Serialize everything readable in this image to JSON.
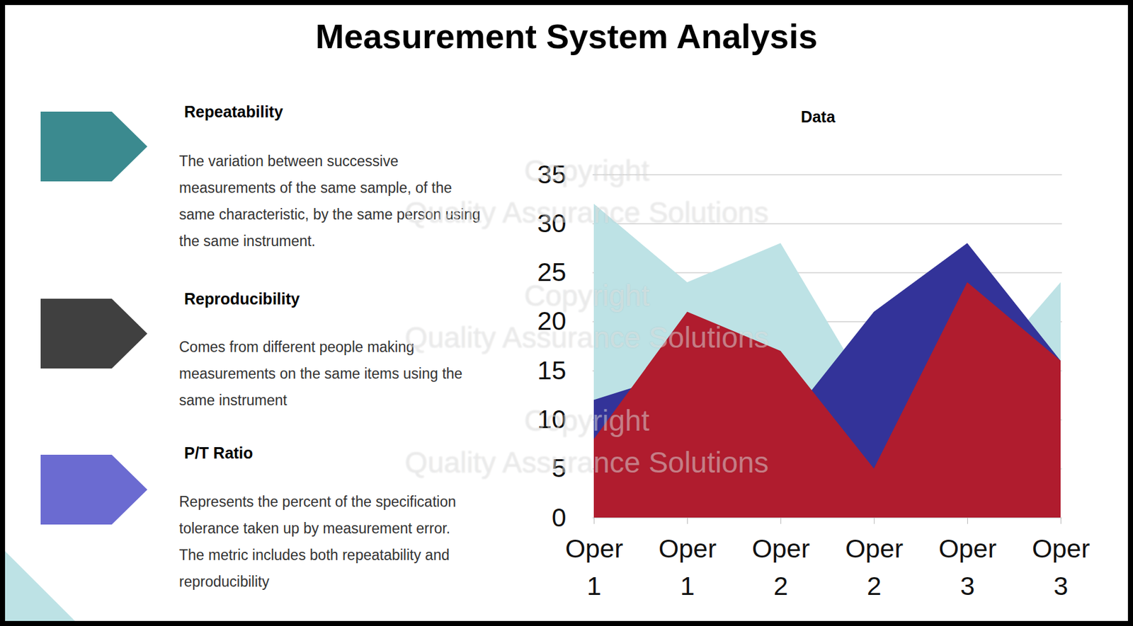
{
  "title": "Measurement System Analysis",
  "panels": [
    {
      "heading": "Repeatability",
      "color": "#3b8a8f",
      "lines": [
        "The variation between successive",
        "measurements of the same sample, of the",
        "same characteristic, by the same person using",
        "the same instrument."
      ]
    },
    {
      "heading": "Reproducibility",
      "color": "#404040",
      "lines": [
        "Comes from different people making",
        "measurements on the same items using the",
        "same instrument"
      ]
    },
    {
      "heading": "P/T Ratio",
      "color": "#6b6bd1",
      "lines": [
        "Represents the percent of the specification",
        "tolerance taken up by measurement error.",
        "The metric includes both repeatability and",
        "reproducibility"
      ]
    }
  ],
  "watermark": [
    "Copyright",
    "Quality Assurance Solutions"
  ],
  "chart_data": {
    "type": "area",
    "title": "Data",
    "categories": [
      "Oper 1",
      "Oper 1",
      "Oper 2",
      "Oper 2",
      "Oper 3",
      "Oper 3"
    ],
    "series": [
      {
        "color": "#bde2e5",
        "values": [
          32,
          24,
          28,
          12,
          13,
          24
        ]
      },
      {
        "color": "#333399",
        "values": [
          12,
          15,
          9,
          21,
          28,
          16
        ]
      },
      {
        "color": "#b01c2e",
        "values": [
          8,
          21,
          17,
          5,
          24,
          16
        ]
      }
    ],
    "ylim": [
      0,
      35
    ],
    "yticks": [
      0,
      5,
      10,
      15,
      20,
      25,
      30,
      35
    ],
    "grid": true,
    "stacked": false
  }
}
